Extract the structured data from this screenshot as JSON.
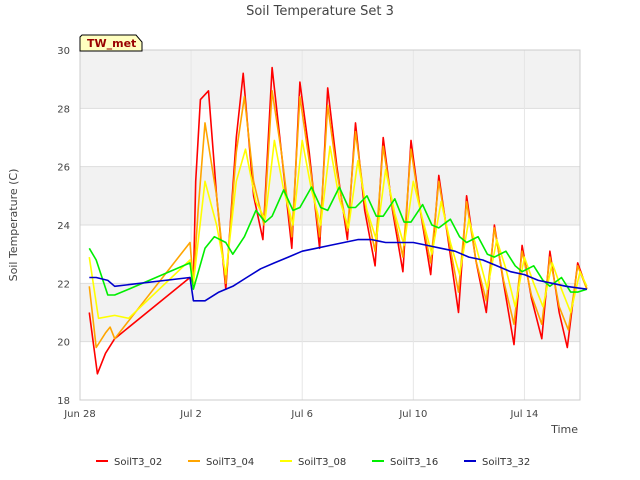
{
  "chart_data": {
    "type": "line",
    "title": "Soil Temperature Set 3",
    "xlabel": "Time",
    "ylabel": "Soil Temperature (C)",
    "ylim": [
      18,
      30
    ],
    "xlim": [
      "2023-06-28T00:00",
      "2023-07-16T00:00"
    ],
    "yticks": [
      18,
      20,
      22,
      24,
      26,
      28,
      30
    ],
    "xticks": [
      {
        "label": "Jun 28",
        "date": "2023-06-28T00:00"
      },
      {
        "label": "Jul 2",
        "date": "2023-07-02T00:00"
      },
      {
        "label": "Jul 6",
        "date": "2023-07-06T00:00"
      },
      {
        "label": "Jul 10",
        "date": "2023-07-10T00:00"
      },
      {
        "label": "Jul 14",
        "date": "2023-07-14T00:00"
      }
    ],
    "grid": true,
    "legend_position": "bottom",
    "annotation": "TW_met",
    "series": [
      {
        "name": "SoilT3_02",
        "color": "#ff0000",
        "points": [
          [
            "2023-06-28T08:00",
            21.0
          ],
          [
            "2023-06-28T12:00",
            19.8
          ],
          [
            "2023-06-28T15:00",
            18.9
          ],
          [
            "2023-06-28T22:00",
            19.6
          ],
          [
            "2023-06-29T06:00",
            20.1
          ],
          [
            "2023-07-01T23:00",
            22.2
          ],
          [
            "2023-07-02T02:00",
            22.0
          ],
          [
            "2023-07-02T04:00",
            25.5
          ],
          [
            "2023-07-02T08:00",
            28.3
          ],
          [
            "2023-07-02T15:00",
            28.6
          ],
          [
            "2023-07-02T22:00",
            25.0
          ],
          [
            "2023-07-03T06:00",
            21.8
          ],
          [
            "2023-07-03T15:00",
            27.0
          ],
          [
            "2023-07-03T21:00",
            29.2
          ],
          [
            "2023-07-04T06:00",
            25.0
          ],
          [
            "2023-07-04T14:00",
            23.5
          ],
          [
            "2023-07-04T22:00",
            29.4
          ],
          [
            "2023-07-05T06:00",
            26.5
          ],
          [
            "2023-07-05T15:00",
            23.2
          ],
          [
            "2023-07-05T22:00",
            28.9
          ],
          [
            "2023-07-06T06:00",
            26.5
          ],
          [
            "2023-07-06T15:00",
            23.2
          ],
          [
            "2023-07-06T22:00",
            28.7
          ],
          [
            "2023-07-07T06:00",
            26.0
          ],
          [
            "2023-07-07T15:00",
            23.5
          ],
          [
            "2023-07-07T22:00",
            27.5
          ],
          [
            "2023-07-08T06:00",
            24.5
          ],
          [
            "2023-07-08T15:00",
            22.6
          ],
          [
            "2023-07-08T22:00",
            27.0
          ],
          [
            "2023-07-09T06:00",
            24.5
          ],
          [
            "2023-07-09T15:00",
            22.4
          ],
          [
            "2023-07-09T22:00",
            26.9
          ],
          [
            "2023-07-10T06:00",
            24.5
          ],
          [
            "2023-07-10T15:00",
            22.3
          ],
          [
            "2023-07-10T22:00",
            25.7
          ],
          [
            "2023-07-11T06:00",
            23.5
          ],
          [
            "2023-07-11T15:00",
            21.0
          ],
          [
            "2023-07-11T22:00",
            25.0
          ],
          [
            "2023-07-12T06:00",
            22.8
          ],
          [
            "2023-07-12T15:00",
            21.0
          ],
          [
            "2023-07-12T22:00",
            24.0
          ],
          [
            "2023-07-13T06:00",
            22.0
          ],
          [
            "2023-07-13T15:00",
            19.9
          ],
          [
            "2023-07-13T22:00",
            23.3
          ],
          [
            "2023-07-14T06:00",
            21.5
          ],
          [
            "2023-07-14T15:00",
            20.1
          ],
          [
            "2023-07-14T22:00",
            23.1
          ],
          [
            "2023-07-15T06:00",
            21.0
          ],
          [
            "2023-07-15T13:00",
            19.8
          ],
          [
            "2023-07-15T22:00",
            22.7
          ],
          [
            "2023-07-16T06:00",
            21.8
          ]
        ]
      },
      {
        "name": "SoilT3_04",
        "color": "#ffa500",
        "points": [
          [
            "2023-06-28T08:00",
            21.9
          ],
          [
            "2023-06-28T14:00",
            19.8
          ],
          [
            "2023-06-28T22:00",
            20.3
          ],
          [
            "2023-06-29T02:00",
            20.5
          ],
          [
            "2023-06-29T06:00",
            20.1
          ],
          [
            "2023-07-01T23:00",
            23.4
          ],
          [
            "2023-07-02T02:00",
            22.0
          ],
          [
            "2023-07-02T06:00",
            24.5
          ],
          [
            "2023-07-02T12:00",
            27.5
          ],
          [
            "2023-07-02T22:00",
            25.0
          ],
          [
            "2023-07-03T06:00",
            22.0
          ],
          [
            "2023-07-03T15:00",
            26.5
          ],
          [
            "2023-07-03T22:00",
            28.4
          ],
          [
            "2023-07-04T06:00",
            25.5
          ],
          [
            "2023-07-04T15:00",
            24.0
          ],
          [
            "2023-07-04T22:00",
            28.6
          ],
          [
            "2023-07-05T06:00",
            26.5
          ],
          [
            "2023-07-05T15:00",
            23.6
          ],
          [
            "2023-07-05T22:00",
            28.4
          ],
          [
            "2023-07-06T06:00",
            26.2
          ],
          [
            "2023-07-06T15:00",
            23.6
          ],
          [
            "2023-07-06T22:00",
            28.1
          ],
          [
            "2023-07-07T06:00",
            25.8
          ],
          [
            "2023-07-07T15:00",
            23.8
          ],
          [
            "2023-07-07T22:00",
            27.2
          ],
          [
            "2023-07-08T06:00",
            24.8
          ],
          [
            "2023-07-08T15:00",
            23.1
          ],
          [
            "2023-07-08T22:00",
            26.7
          ],
          [
            "2023-07-09T06:00",
            24.6
          ],
          [
            "2023-07-09T15:00",
            22.9
          ],
          [
            "2023-07-09T22:00",
            26.6
          ],
          [
            "2023-07-10T06:00",
            24.5
          ],
          [
            "2023-07-10T15:00",
            22.7
          ],
          [
            "2023-07-10T22:00",
            25.5
          ],
          [
            "2023-07-11T06:00",
            23.6
          ],
          [
            "2023-07-11T15:00",
            21.7
          ],
          [
            "2023-07-11T22:00",
            24.8
          ],
          [
            "2023-07-12T06:00",
            22.8
          ],
          [
            "2023-07-12T15:00",
            21.4
          ],
          [
            "2023-07-12T22:00",
            23.9
          ],
          [
            "2023-07-13T06:00",
            22.1
          ],
          [
            "2023-07-13T15:00",
            20.6
          ],
          [
            "2023-07-13T22:00",
            23.1
          ],
          [
            "2023-07-14T06:00",
            21.6
          ],
          [
            "2023-07-14T15:00",
            20.6
          ],
          [
            "2023-07-14T22:00",
            22.9
          ],
          [
            "2023-07-15T06:00",
            21.2
          ],
          [
            "2023-07-15T14:00",
            20.4
          ],
          [
            "2023-07-15T22:00",
            22.6
          ],
          [
            "2023-07-16T06:00",
            21.8
          ]
        ]
      },
      {
        "name": "SoilT3_08",
        "color": "#ffff00",
        "points": [
          [
            "2023-06-28T08:00",
            22.9
          ],
          [
            "2023-06-28T16:00",
            20.8
          ],
          [
            "2023-06-29T06:00",
            20.9
          ],
          [
            "2023-06-29T18:00",
            20.8
          ],
          [
            "2023-07-01T23:00",
            22.8
          ],
          [
            "2023-07-02T02:00",
            22.0
          ],
          [
            "2023-07-02T12:00",
            25.5
          ],
          [
            "2023-07-02T22:00",
            24.0
          ],
          [
            "2023-07-03T06:00",
            22.3
          ],
          [
            "2023-07-03T15:00",
            25.5
          ],
          [
            "2023-07-03T23:00",
            26.6
          ],
          [
            "2023-07-04T08:00",
            24.8
          ],
          [
            "2023-07-04T16:00",
            24.2
          ],
          [
            "2023-07-05T00:00",
            26.9
          ],
          [
            "2023-07-05T08:00",
            25.2
          ],
          [
            "2023-07-05T16:00",
            24.0
          ],
          [
            "2023-07-06T00:00",
            26.9
          ],
          [
            "2023-07-06T08:00",
            25.2
          ],
          [
            "2023-07-06T16:00",
            24.0
          ],
          [
            "2023-07-07T00:00",
            26.7
          ],
          [
            "2023-07-07T08:00",
            24.9
          ],
          [
            "2023-07-07T16:00",
            23.9
          ],
          [
            "2023-07-08T00:00",
            26.2
          ],
          [
            "2023-07-08T08:00",
            24.5
          ],
          [
            "2023-07-08T16:00",
            23.5
          ],
          [
            "2023-07-09T00:00",
            25.9
          ],
          [
            "2023-07-09T08:00",
            24.4
          ],
          [
            "2023-07-09T16:00",
            23.3
          ],
          [
            "2023-07-10T00:00",
            25.5
          ],
          [
            "2023-07-10T08:00",
            24.2
          ],
          [
            "2023-07-10T16:00",
            23.0
          ],
          [
            "2023-07-11T00:00",
            24.8
          ],
          [
            "2023-07-11T08:00",
            23.4
          ],
          [
            "2023-07-11T16:00",
            22.3
          ],
          [
            "2023-07-12T00:00",
            24.2
          ],
          [
            "2023-07-12T08:00",
            23.0
          ],
          [
            "2023-07-12T16:00",
            21.8
          ],
          [
            "2023-07-13T00:00",
            23.5
          ],
          [
            "2023-07-13T08:00",
            22.5
          ],
          [
            "2023-07-13T16:00",
            21.2
          ],
          [
            "2023-07-14T00:00",
            22.9
          ],
          [
            "2023-07-14T08:00",
            22.0
          ],
          [
            "2023-07-14T16:00",
            21.2
          ],
          [
            "2023-07-15T00:00",
            22.7
          ],
          [
            "2023-07-15T08:00",
            21.8
          ],
          [
            "2023-07-15T16:00",
            21.0
          ],
          [
            "2023-07-16T00:00",
            22.4
          ],
          [
            "2023-07-16T06:00",
            21.9
          ]
        ]
      },
      {
        "name": "SoilT3_16",
        "color": "#00ee00",
        "points": [
          [
            "2023-06-28T08:00",
            23.2
          ],
          [
            "2023-06-28T14:00",
            22.8
          ],
          [
            "2023-06-29T00:00",
            21.6
          ],
          [
            "2023-06-29T06:00",
            21.6
          ],
          [
            "2023-06-29T18:00",
            21.8
          ],
          [
            "2023-07-01T23:00",
            22.7
          ],
          [
            "2023-07-02T02:00",
            21.8
          ],
          [
            "2023-07-02T12:00",
            23.2
          ],
          [
            "2023-07-02T20:00",
            23.6
          ],
          [
            "2023-07-03T06:00",
            23.4
          ],
          [
            "2023-07-03T12:00",
            23.0
          ],
          [
            "2023-07-03T22:00",
            23.6
          ],
          [
            "2023-07-04T08:00",
            24.5
          ],
          [
            "2023-07-04T16:00",
            24.1
          ],
          [
            "2023-07-04T22:00",
            24.3
          ],
          [
            "2023-07-05T08:00",
            25.2
          ],
          [
            "2023-07-05T16:00",
            24.5
          ],
          [
            "2023-07-05T22:00",
            24.6
          ],
          [
            "2023-07-06T08:00",
            25.3
          ],
          [
            "2023-07-06T16:00",
            24.6
          ],
          [
            "2023-07-06T22:00",
            24.5
          ],
          [
            "2023-07-07T08:00",
            25.3
          ],
          [
            "2023-07-07T16:00",
            24.6
          ],
          [
            "2023-07-07T22:00",
            24.6
          ],
          [
            "2023-07-08T08:00",
            25.0
          ],
          [
            "2023-07-08T16:00",
            24.3
          ],
          [
            "2023-07-08T22:00",
            24.3
          ],
          [
            "2023-07-09T08:00",
            24.9
          ],
          [
            "2023-07-09T16:00",
            24.1
          ],
          [
            "2023-07-09T22:00",
            24.1
          ],
          [
            "2023-07-10T08:00",
            24.7
          ],
          [
            "2023-07-10T16:00",
            24.0
          ],
          [
            "2023-07-10T22:00",
            23.9
          ],
          [
            "2023-07-11T08:00",
            24.2
          ],
          [
            "2023-07-11T16:00",
            23.6
          ],
          [
            "2023-07-11T22:00",
            23.4
          ],
          [
            "2023-07-12T08:00",
            23.6
          ],
          [
            "2023-07-12T16:00",
            23.0
          ],
          [
            "2023-07-12T22:00",
            22.9
          ],
          [
            "2023-07-13T08:00",
            23.1
          ],
          [
            "2023-07-13T16:00",
            22.6
          ],
          [
            "2023-07-13T22:00",
            22.4
          ],
          [
            "2023-07-14T08:00",
            22.6
          ],
          [
            "2023-07-14T16:00",
            22.1
          ],
          [
            "2023-07-14T22:00",
            21.9
          ],
          [
            "2023-07-15T08:00",
            22.2
          ],
          [
            "2023-07-15T16:00",
            21.7
          ],
          [
            "2023-07-15T22:00",
            21.7
          ],
          [
            "2023-07-16T06:00",
            21.8
          ]
        ]
      },
      {
        "name": "SoilT3_32",
        "color": "#0000cc",
        "points": [
          [
            "2023-06-28T08:00",
            22.2
          ],
          [
            "2023-06-28T14:00",
            22.2
          ],
          [
            "2023-06-29T00:00",
            22.1
          ],
          [
            "2023-06-29T06:00",
            21.9
          ],
          [
            "2023-07-01T23:00",
            22.2
          ],
          [
            "2023-07-02T02:00",
            21.4
          ],
          [
            "2023-07-02T12:00",
            21.4
          ],
          [
            "2023-07-03T00:00",
            21.7
          ],
          [
            "2023-07-03T12:00",
            21.9
          ],
          [
            "2023-07-04T00:00",
            22.2
          ],
          [
            "2023-07-04T12:00",
            22.5
          ],
          [
            "2023-07-05T00:00",
            22.7
          ],
          [
            "2023-07-05T12:00",
            22.9
          ],
          [
            "2023-07-06T00:00",
            23.1
          ],
          [
            "2023-07-06T12:00",
            23.2
          ],
          [
            "2023-07-07T00:00",
            23.3
          ],
          [
            "2023-07-07T12:00",
            23.4
          ],
          [
            "2023-07-08T00:00",
            23.5
          ],
          [
            "2023-07-08T12:00",
            23.5
          ],
          [
            "2023-07-09T00:00",
            23.4
          ],
          [
            "2023-07-09T12:00",
            23.4
          ],
          [
            "2023-07-10T00:00",
            23.4
          ],
          [
            "2023-07-10T12:00",
            23.3
          ],
          [
            "2023-07-11T00:00",
            23.2
          ],
          [
            "2023-07-11T12:00",
            23.1
          ],
          [
            "2023-07-12T00:00",
            22.9
          ],
          [
            "2023-07-12T12:00",
            22.8
          ],
          [
            "2023-07-13T00:00",
            22.6
          ],
          [
            "2023-07-13T12:00",
            22.4
          ],
          [
            "2023-07-14T00:00",
            22.3
          ],
          [
            "2023-07-14T12:00",
            22.1
          ],
          [
            "2023-07-15T00:00",
            22.0
          ],
          [
            "2023-07-15T12:00",
            21.9
          ],
          [
            "2023-07-16T06:00",
            21.8
          ]
        ]
      }
    ]
  }
}
